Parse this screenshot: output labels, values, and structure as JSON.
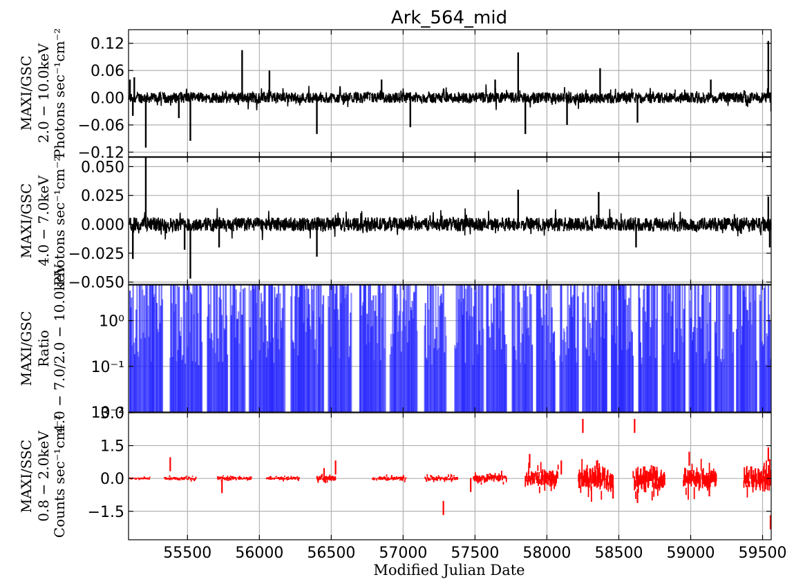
{
  "title": "Ark_564_mid",
  "xlabel": "Modified Julian Date",
  "colors": {
    "panel1": "#000000",
    "panel2": "#000000",
    "panel3": "#1f1fff",
    "panel4": "#ff0000",
    "grid": "#b0b0b0"
  },
  "chart_data": [
    {
      "type": "line",
      "panel": 1,
      "ylabel_lines": [
        "MAXI/GSC",
        "2.0 − 10.0keV",
        "Photons sec⁻¹cm⁻²"
      ],
      "ylim": [
        -0.13,
        0.15
      ],
      "yticks": [
        0.12,
        0.06,
        0.0,
        -0.06,
        -0.12
      ],
      "ytick_labels": [
        "0.12",
        "0.06",
        "0.00",
        "−0.06",
        "−0.12"
      ],
      "xlim": [
        55090,
        59560
      ],
      "noise_amplitude": 0.012,
      "spikes": [
        {
          "x": 55100,
          "y": 0.04
        },
        {
          "x": 55130,
          "y": 0.045
        },
        {
          "x": 55120,
          "y": -0.04
        },
        {
          "x": 55210,
          "y": -0.11
        },
        {
          "x": 55440,
          "y": -0.045
        },
        {
          "x": 55520,
          "y": -0.095
        },
        {
          "x": 55880,
          "y": 0.105
        },
        {
          "x": 56070,
          "y": 0.06
        },
        {
          "x": 56400,
          "y": -0.08
        },
        {
          "x": 56850,
          "y": 0.04
        },
        {
          "x": 57050,
          "y": -0.065
        },
        {
          "x": 57640,
          "y": 0.04
        },
        {
          "x": 57800,
          "y": 0.1
        },
        {
          "x": 57850,
          "y": -0.08
        },
        {
          "x": 58140,
          "y": -0.06
        },
        {
          "x": 58370,
          "y": 0.065
        },
        {
          "x": 58630,
          "y": -0.055
        },
        {
          "x": 59140,
          "y": 0.04
        },
        {
          "x": 59540,
          "y": 0.125
        },
        {
          "x": 59560,
          "y": -0.03
        }
      ]
    },
    {
      "type": "line",
      "panel": 2,
      "ylabel_lines": [
        "MAXI/GSC",
        "4.0 − 7.0keV",
        "Photons sec⁻¹cm⁻²"
      ],
      "ylim": [
        -0.052,
        0.058
      ],
      "yticks": [
        0.05,
        0.025,
        0.0,
        -0.025,
        -0.05
      ],
      "ytick_labels": [
        "0.050",
        "0.025",
        "0.000",
        "−0.025",
        "−0.050"
      ],
      "xlim": [
        55090,
        59560
      ],
      "noise_amplitude": 0.006,
      "spikes": [
        {
          "x": 55210,
          "y": 0.058
        },
        {
          "x": 55120,
          "y": -0.03
        },
        {
          "x": 55480,
          "y": -0.022
        },
        {
          "x": 55520,
          "y": -0.047
        },
        {
          "x": 55720,
          "y": -0.02
        },
        {
          "x": 56400,
          "y": -0.028
        },
        {
          "x": 57800,
          "y": 0.03
        },
        {
          "x": 58360,
          "y": 0.028
        },
        {
          "x": 58620,
          "y": -0.02
        },
        {
          "x": 59540,
          "y": 0.024
        },
        {
          "x": 59550,
          "y": -0.02
        }
      ]
    },
    {
      "type": "bar",
      "panel": 3,
      "ylabel_lines": [
        "MAXI/GSC",
        "Ratio",
        "4.0 − 7.0/2.0 − 10.0keV"
      ],
      "yscale": "log",
      "ylim": [
        0.01,
        6
      ],
      "yticks": [
        1,
        0.1,
        0.01
      ],
      "ytick_labels": [
        "10⁰",
        "10⁻¹",
        "10⁻²"
      ],
      "xlim": [
        55090,
        59560
      ],
      "visits": [
        [
          55100,
          55330
        ],
        [
          55380,
          55600
        ],
        [
          55640,
          55780
        ],
        [
          55800,
          55900
        ],
        [
          55930,
          56180
        ],
        [
          56220,
          56450
        ],
        [
          56480,
          56640
        ],
        [
          56700,
          56880
        ],
        [
          56910,
          57100
        ],
        [
          57150,
          57300
        ],
        [
          57360,
          57560
        ],
        [
          57580,
          57720
        ],
        [
          57760,
          57900
        ],
        [
          57930,
          58060
        ],
        [
          58090,
          58220
        ],
        [
          58250,
          58420
        ],
        [
          58450,
          58600
        ],
        [
          58640,
          58770
        ],
        [
          58800,
          58960
        ],
        [
          58990,
          59140
        ],
        [
          59170,
          59300
        ],
        [
          59320,
          59460
        ],
        [
          59480,
          59560
        ]
      ]
    },
    {
      "type": "scatter",
      "panel": 4,
      "ylabel_lines": [
        "MAXI/SSC",
        "0.8 − 2.0keV",
        "Counts sec⁻¹cm⁻²"
      ],
      "ylim": [
        -2.8,
        3.0
      ],
      "yticks": [
        3.0,
        1.5,
        0.0,
        -1.5
      ],
      "ytick_labels": [
        "3.0",
        "1.5",
        "0.0",
        "−1.5"
      ],
      "xlim": [
        55090,
        59560
      ],
      "segments": [
        {
          "x0": 55100,
          "x1": 55240,
          "amp": 0.05
        },
        {
          "x0": 55340,
          "x1": 55560,
          "amp": 0.06
        },
        {
          "x0": 55710,
          "x1": 55950,
          "amp": 0.07
        },
        {
          "x0": 56050,
          "x1": 56280,
          "amp": 0.06
        },
        {
          "x0": 56400,
          "x1": 56530,
          "amp": 0.1
        },
        {
          "x0": 56780,
          "x1": 57020,
          "amp": 0.08
        },
        {
          "x0": 57150,
          "x1": 57380,
          "amp": 0.08
        },
        {
          "x0": 57490,
          "x1": 57720,
          "amp": 0.15
        },
        {
          "x0": 57850,
          "x1": 58080,
          "amp": 0.3
        },
        {
          "x0": 58220,
          "x1": 58460,
          "amp": 0.45
        },
        {
          "x0": 58600,
          "x1": 58820,
          "amp": 0.45
        },
        {
          "x0": 58950,
          "x1": 59180,
          "amp": 0.4
        },
        {
          "x0": 59370,
          "x1": 59560,
          "amp": 0.45
        }
      ],
      "outliers": [
        {
          "x": 55380,
          "y": 0.65
        },
        {
          "x": 55740,
          "y": -0.35
        },
        {
          "x": 56450,
          "y": 0.15
        },
        {
          "x": 56530,
          "y": 0.5
        },
        {
          "x": 57280,
          "y": -1.35
        },
        {
          "x": 57470,
          "y": -0.3
        },
        {
          "x": 57880,
          "y": 0.8
        },
        {
          "x": 58100,
          "y": 0.5
        },
        {
          "x": 58250,
          "y": 2.4
        },
        {
          "x": 58460,
          "y": -0.6
        },
        {
          "x": 58610,
          "y": 2.4
        },
        {
          "x": 58630,
          "y": -0.8
        },
        {
          "x": 58990,
          "y": 0.9
        },
        {
          "x": 59130,
          "y": -0.5
        },
        {
          "x": 59540,
          "y": 1.1
        },
        {
          "x": 59555,
          "y": -2.0
        }
      ]
    }
  ],
  "xticks": [
    55500,
    56000,
    56500,
    57000,
    57500,
    58000,
    58500,
    59000,
    59500
  ],
  "xtick_labels": [
    "55500",
    "56000",
    "56500",
    "57000",
    "57500",
    "58000",
    "58500",
    "59000",
    "59500"
  ]
}
